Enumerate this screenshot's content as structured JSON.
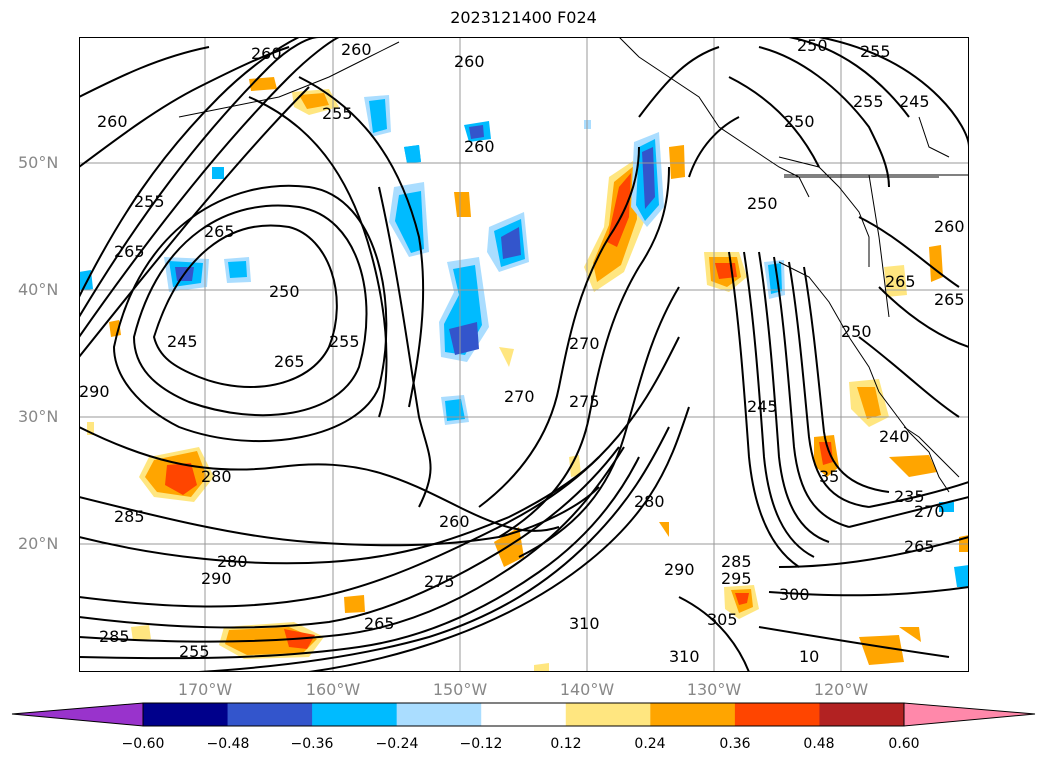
{
  "title": "2023121400 F024",
  "map": {
    "lat_labels": [
      "50°N",
      "40°N",
      "30°N",
      "20°N"
    ],
    "lon_labels": [
      "170°W",
      "160°W",
      "150°W",
      "140°W",
      "130°W",
      "120°W"
    ],
    "contour_labels": [
      "260",
      "260",
      "260",
      "260",
      "255",
      "255",
      "250",
      "255",
      "245",
      "250",
      "250",
      "265",
      "265",
      "250",
      "255",
      "245",
      "290",
      "255",
      "270",
      "270",
      "275",
      "245",
      "240",
      "280",
      "285",
      "280",
      "290",
      "260",
      "275",
      "265",
      "310",
      "310",
      "305",
      "300",
      "295",
      "285",
      "290",
      "265",
      "270",
      "285",
      "280",
      "265",
      "260",
      "265",
      "250",
      "265",
      "260",
      "235",
      "255",
      "10",
      "35"
    ],
    "gridlines": true,
    "coastlines": true
  },
  "colorbar": {
    "ticks": [
      "−0.60",
      "−0.48",
      "−0.36",
      "−0.24",
      "−0.12",
      "0.12",
      "0.24",
      "0.36",
      "0.48",
      "0.60"
    ],
    "colors": [
      "#9933cc",
      "#00008b",
      "#3355cc",
      "#00bbff",
      "#aaddff",
      "#ffffff",
      "#ffe680",
      "#ffa500",
      "#ff4500",
      "#b22222",
      "#ff88aa"
    ],
    "extend": "both"
  }
}
